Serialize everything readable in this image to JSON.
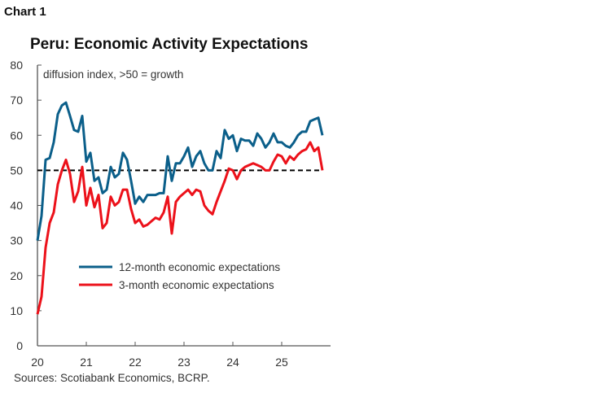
{
  "chart_label": "Chart 1",
  "source": "Sources: Scotiabank Economics, BCRP.",
  "chart_data": {
    "type": "line",
    "title": "Peru: Economic Activity Expectations",
    "ylabel": "diffusion index, >50 = growth",
    "xlabel": "",
    "ylim": [
      0,
      80
    ],
    "yticks": [
      "0",
      "10",
      "20",
      "30",
      "40",
      "50",
      "60",
      "70",
      "80"
    ],
    "xticks": [
      "20",
      "21",
      "22",
      "23",
      "24",
      "25"
    ],
    "x_start": "2020-01",
    "frequency": "monthly",
    "reference_line": {
      "value": 50,
      "style": "dashed",
      "color": "#000000"
    },
    "grid": false,
    "legend_position": "lower-middle",
    "series": [
      {
        "name": "12-month economic expectations",
        "color": "#0b5f8a",
        "values": [
          30,
          37,
          53,
          53.5,
          58,
          66,
          68.5,
          69.3,
          65.5,
          61.5,
          61,
          65.5,
          52.5,
          55,
          47,
          48,
          43.5,
          44.5,
          51,
          48,
          49,
          55,
          53,
          47,
          40.5,
          42.5,
          41,
          43,
          43,
          43,
          43.5,
          43.5,
          54,
          47,
          52,
          52,
          54,
          56.5,
          51,
          54,
          55.5,
          52,
          50,
          50,
          55.5,
          53.5,
          61.5,
          59,
          60,
          55.5,
          59,
          58.5,
          58.5,
          57,
          60.5,
          59,
          56.5,
          58,
          60.5,
          58,
          58,
          57,
          56.5,
          58,
          60,
          61,
          61,
          64,
          64.5,
          65,
          60
        ]
      },
      {
        "name": "3-month economic expectations",
        "color": "#ec111a",
        "values": [
          9,
          14,
          28,
          35,
          38,
          46,
          50,
          53,
          49,
          41,
          44,
          51,
          40,
          45,
          39.5,
          43,
          33.5,
          35,
          42.5,
          40,
          41,
          44.5,
          44.5,
          39,
          35,
          36,
          34,
          34.5,
          35.5,
          36.5,
          36,
          38,
          42.5,
          32,
          41,
          42.5,
          43.5,
          44.5,
          43,
          44.5,
          44,
          40,
          38.5,
          37.5,
          41,
          44,
          47,
          50.5,
          50,
          47.5,
          50,
          51,
          51.5,
          52,
          51.5,
          51,
          50,
          50,
          52.5,
          54.5,
          54,
          52,
          54,
          53,
          54.5,
          55.5,
          56,
          58,
          55.5,
          56.5,
          50
        ]
      }
    ]
  }
}
